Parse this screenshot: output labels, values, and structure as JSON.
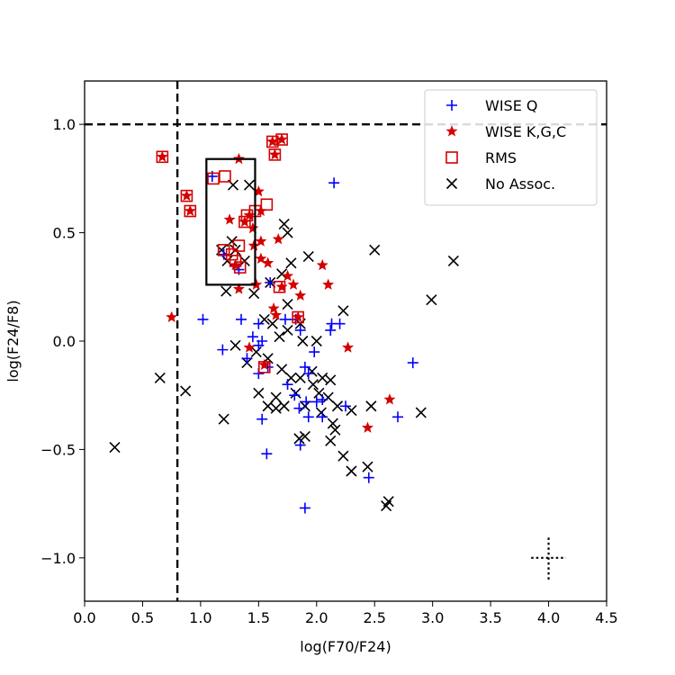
{
  "chart_data": {
    "type": "scatter",
    "xlabel": "log(F70/F24)",
    "ylabel": "log(F24/F8)",
    "xlim": [
      0.0,
      4.5
    ],
    "ylim": [
      -1.2,
      1.2
    ],
    "xticks": [
      "0.0",
      "0.5",
      "1.0",
      "1.5",
      "2.0",
      "2.5",
      "3.0",
      "3.5",
      "4.0",
      "4.5"
    ],
    "yticks": [
      "−1.0",
      "−0.5",
      "0.0",
      "0.5",
      "1.0"
    ],
    "grid": false,
    "legend_position": "top-right",
    "reference_lines": {
      "vertical_x": 0.8,
      "horizontal_y": 1.0
    },
    "selection_box": {
      "x": [
        1.05,
        1.47
      ],
      "y": [
        0.26,
        0.84
      ]
    },
    "error_cross": {
      "x": 4.0,
      "y": -1.0,
      "xerr": 0.15,
      "yerr": 0.1
    },
    "series": [
      {
        "name": "WISE Q",
        "marker": "plus",
        "color": "#0000ff",
        "points": [
          [
            1.1,
            0.76
          ],
          [
            2.15,
            0.73
          ],
          [
            1.02,
            0.1
          ],
          [
            1.35,
            0.1
          ],
          [
            1.5,
            0.08
          ],
          [
            1.6,
            0.27
          ],
          [
            1.73,
            0.1
          ],
          [
            1.82,
            0.1
          ],
          [
            1.86,
            0.05
          ],
          [
            2.13,
            0.08
          ],
          [
            2.2,
            0.08
          ],
          [
            2.12,
            0.05
          ],
          [
            1.45,
            0.02
          ],
          [
            1.5,
            -0.02
          ],
          [
            1.53,
            0.0
          ],
          [
            1.19,
            -0.04
          ],
          [
            1.4,
            -0.08
          ],
          [
            1.5,
            -0.15
          ],
          [
            1.58,
            -0.12
          ],
          [
            1.9,
            -0.12
          ],
          [
            1.93,
            -0.15
          ],
          [
            1.98,
            -0.05
          ],
          [
            2.83,
            -0.1
          ],
          [
            1.75,
            -0.2
          ],
          [
            1.81,
            -0.25
          ],
          [
            1.91,
            -0.28
          ],
          [
            2.0,
            -0.28
          ],
          [
            2.05,
            -0.27
          ],
          [
            1.85,
            -0.31
          ],
          [
            1.93,
            -0.35
          ],
          [
            2.05,
            -0.35
          ],
          [
            2.25,
            -0.3
          ],
          [
            2.7,
            -0.35
          ],
          [
            1.53,
            -0.36
          ],
          [
            1.86,
            -0.48
          ],
          [
            1.57,
            -0.52
          ],
          [
            2.45,
            -0.63
          ],
          [
            1.9,
            -0.77
          ],
          [
            1.2,
            0.4
          ],
          [
            1.33,
            0.33
          ]
        ]
      },
      {
        "name": "WISE K,G,C",
        "marker": "star",
        "color": "#d40000",
        "points": [
          [
            0.67,
            0.85
          ],
          [
            0.75,
            0.11
          ],
          [
            0.88,
            0.67
          ],
          [
            0.91,
            0.6
          ],
          [
            1.33,
            0.84
          ],
          [
            1.62,
            0.92
          ],
          [
            1.7,
            0.93
          ],
          [
            1.64,
            0.86
          ],
          [
            1.5,
            0.69
          ],
          [
            1.25,
            0.56
          ],
          [
            1.38,
            0.55
          ],
          [
            1.42,
            0.58
          ],
          [
            1.52,
            0.6
          ],
          [
            1.45,
            0.52
          ],
          [
            1.52,
            0.46
          ],
          [
            1.46,
            0.44
          ],
          [
            1.52,
            0.38
          ],
          [
            1.58,
            0.36
          ],
          [
            1.67,
            0.47
          ],
          [
            1.75,
            0.3
          ],
          [
            1.7,
            0.25
          ],
          [
            1.48,
            0.26
          ],
          [
            1.33,
            0.24
          ],
          [
            1.8,
            0.26
          ],
          [
            1.86,
            0.21
          ],
          [
            2.05,
            0.35
          ],
          [
            2.1,
            0.26
          ],
          [
            1.63,
            0.15
          ],
          [
            1.65,
            0.12
          ],
          [
            1.84,
            0.11
          ],
          [
            2.27,
            -0.03
          ],
          [
            1.42,
            -0.03
          ],
          [
            2.63,
            -0.27
          ],
          [
            2.44,
            -0.4
          ],
          [
            1.55,
            -0.11
          ],
          [
            1.3,
            0.35
          ]
        ]
      },
      {
        "name": "RMS",
        "marker": "square",
        "color": "#d40000",
        "points": [
          [
            0.67,
            0.85
          ],
          [
            0.88,
            0.67
          ],
          [
            0.91,
            0.6
          ],
          [
            1.11,
            0.75
          ],
          [
            1.21,
            0.76
          ],
          [
            1.62,
            0.92
          ],
          [
            1.7,
            0.93
          ],
          [
            1.64,
            0.86
          ],
          [
            1.57,
            0.63
          ],
          [
            1.47,
            0.6
          ],
          [
            1.4,
            0.58
          ],
          [
            1.38,
            0.55
          ],
          [
            1.2,
            0.42
          ],
          [
            1.33,
            0.44
          ],
          [
            1.27,
            0.4
          ],
          [
            1.3,
            0.37
          ],
          [
            1.34,
            0.34
          ],
          [
            1.68,
            0.25
          ],
          [
            1.84,
            0.11
          ],
          [
            1.55,
            -0.12
          ]
        ]
      },
      {
        "name": "No Assoc.",
        "marker": "x",
        "color": "#000000",
        "points": [
          [
            0.26,
            -0.49
          ],
          [
            0.65,
            -0.17
          ],
          [
            0.87,
            -0.23
          ],
          [
            1.2,
            -0.36
          ],
          [
            1.28,
            0.72
          ],
          [
            1.42,
            0.72
          ],
          [
            1.27,
            0.46
          ],
          [
            1.3,
            0.42
          ],
          [
            1.18,
            0.42
          ],
          [
            1.23,
            0.37
          ],
          [
            1.38,
            0.37
          ],
          [
            1.22,
            0.23
          ],
          [
            1.46,
            0.22
          ],
          [
            1.6,
            0.27
          ],
          [
            1.72,
            0.54
          ],
          [
            1.75,
            0.5
          ],
          [
            1.7,
            0.31
          ],
          [
            1.78,
            0.36
          ],
          [
            1.93,
            0.39
          ],
          [
            2.5,
            0.42
          ],
          [
            3.18,
            0.37
          ],
          [
            2.99,
            0.19
          ],
          [
            1.75,
            0.17
          ],
          [
            2.23,
            0.14
          ],
          [
            1.55,
            0.1
          ],
          [
            1.62,
            0.08
          ],
          [
            1.68,
            0.02
          ],
          [
            1.75,
            0.05
          ],
          [
            1.86,
            0.08
          ],
          [
            1.88,
            0.0
          ],
          [
            2.0,
            0.0
          ],
          [
            1.3,
            -0.02
          ],
          [
            1.4,
            -0.1
          ],
          [
            1.48,
            -0.05
          ],
          [
            1.58,
            -0.08
          ],
          [
            1.7,
            -0.13
          ],
          [
            1.78,
            -0.17
          ],
          [
            1.86,
            -0.17
          ],
          [
            1.96,
            -0.14
          ],
          [
            2.05,
            -0.17
          ],
          [
            2.12,
            -0.18
          ],
          [
            1.5,
            -0.24
          ],
          [
            1.65,
            -0.26
          ],
          [
            1.72,
            -0.3
          ],
          [
            1.82,
            -0.24
          ],
          [
            1.9,
            -0.3
          ],
          [
            2.02,
            -0.24
          ],
          [
            2.1,
            -0.26
          ],
          [
            2.18,
            -0.3
          ],
          [
            2.3,
            -0.32
          ],
          [
            2.47,
            -0.3
          ],
          [
            2.9,
            -0.33
          ],
          [
            1.9,
            -0.44
          ],
          [
            1.85,
            -0.45
          ],
          [
            2.12,
            -0.46
          ],
          [
            2.16,
            -0.41
          ],
          [
            2.23,
            -0.53
          ],
          [
            2.3,
            -0.6
          ],
          [
            2.44,
            -0.58
          ],
          [
            2.6,
            -0.76
          ],
          [
            2.62,
            -0.74
          ],
          [
            1.58,
            -0.3
          ],
          [
            1.65,
            -0.31
          ],
          [
            2.04,
            -0.33
          ],
          [
            1.97,
            -0.2
          ],
          [
            2.14,
            -0.38
          ]
        ]
      }
    ]
  }
}
